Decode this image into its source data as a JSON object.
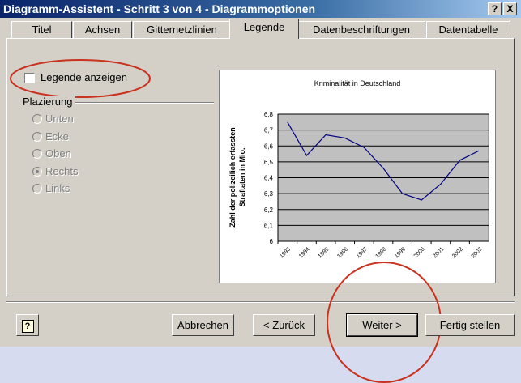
{
  "window": {
    "title": "Diagramm-Assistent - Schritt 3 von 4 - Diagrammoptionen",
    "help_button": "?",
    "close_button": "X"
  },
  "tabs": [
    {
      "label": "Titel"
    },
    {
      "label": "Achsen"
    },
    {
      "label": "Gitternetzlinien"
    },
    {
      "label": "Legende",
      "selected": true
    },
    {
      "label": "Datenbeschriftungen"
    },
    {
      "label": "Datentabelle"
    }
  ],
  "legend_checkbox": {
    "label": "Legende anzeigen",
    "checked": false
  },
  "placement": {
    "label": "Plazierung",
    "enabled": false,
    "options": [
      {
        "label": "Unten"
      },
      {
        "label": "Ecke"
      },
      {
        "label": "Oben"
      },
      {
        "label": "Rechts",
        "selected": true
      },
      {
        "label": "Links"
      }
    ]
  },
  "chart_data": {
    "type": "line",
    "title": "Kriminalität in Deutschland",
    "ylabel": [
      "Zahl der polizeilich erfassten",
      "Straftaten in Mio."
    ],
    "categories": [
      "1993",
      "1994",
      "1995",
      "1996",
      "1997",
      "1998",
      "1999",
      "2000",
      "2001",
      "2002",
      "2003"
    ],
    "values": [
      6.75,
      6.54,
      6.67,
      6.65,
      6.59,
      6.46,
      6.3,
      6.26,
      6.36,
      6.51,
      6.57
    ],
    "color": "#000080",
    "ylim": [
      6,
      6.8
    ],
    "yticks": [
      6,
      {
        "value": 6.1,
        "label": "6,1"
      },
      {
        "value": 6.2,
        "label": "6,2"
      },
      {
        "value": 6.3,
        "label": "6,3"
      },
      {
        "value": 6.4,
        "label": "6,4"
      },
      {
        "value": 6.5,
        "label": "6,5"
      },
      {
        "value": 6.6,
        "label": "6,6"
      },
      {
        "value": 6.7,
        "label": "6,7"
      },
      {
        "value": 6.8,
        "label": "6,8"
      }
    ],
    "grid": true
  },
  "help_icon": "?",
  "buttons": [
    "Abbrechen",
    "< Zurück",
    "Weiter >",
    "Fertig stellen"
  ]
}
